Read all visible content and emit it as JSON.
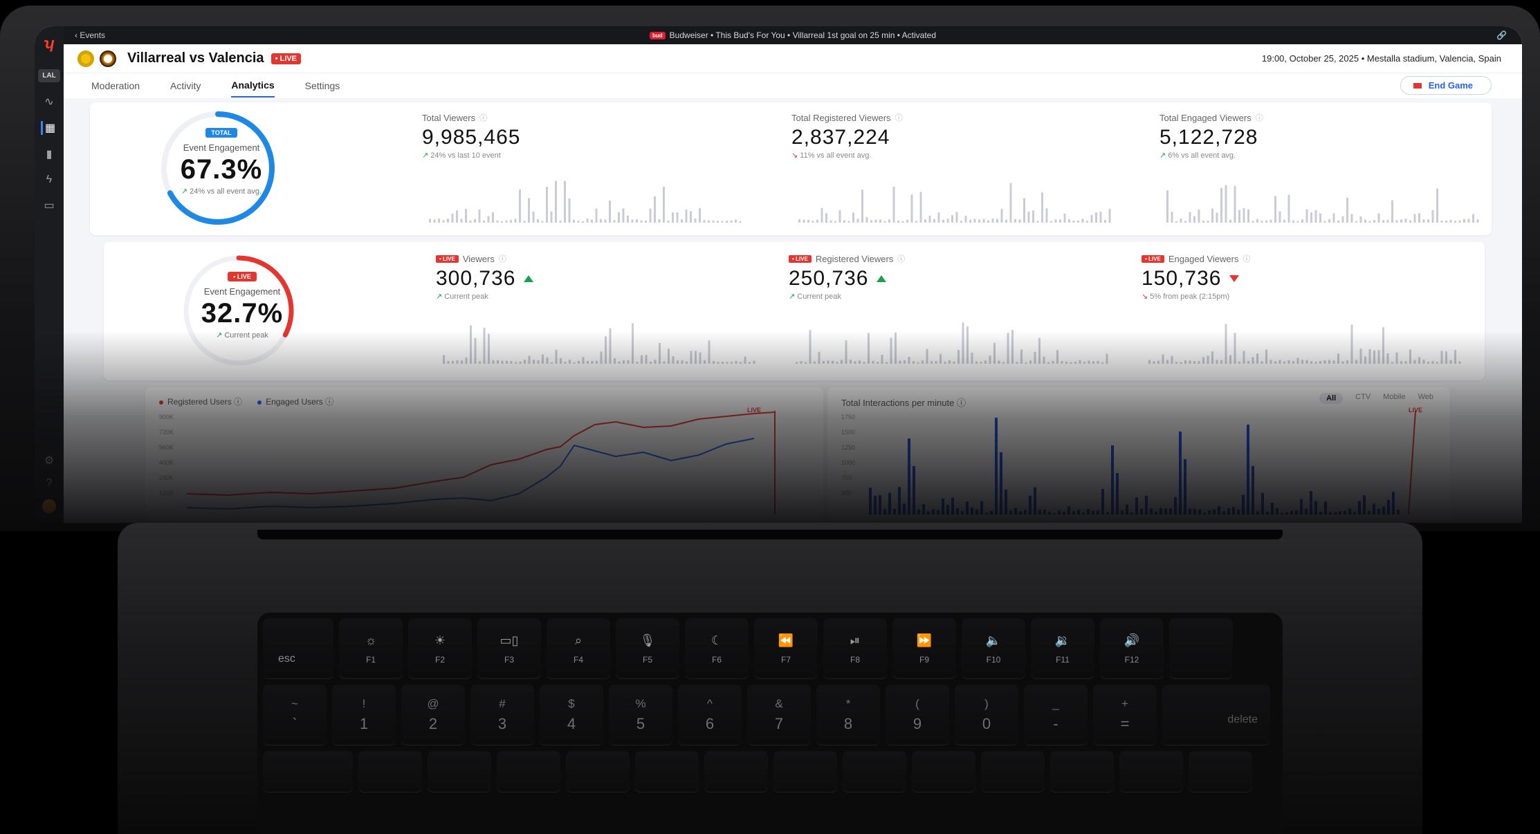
{
  "topbar": {
    "back_label": "Events",
    "sponsor_logo": "bud",
    "sponsor_text": "Budweiser  •  This Bud's For You  •  Villarreal 1st goal on 25 min  •  Activated"
  },
  "rail": {
    "org_label": "LAL"
  },
  "header": {
    "title": "Villarreal vs Valencia",
    "live_badge": "• LIVE",
    "meta": "19:00, October 25, 2025  •  Mestalla stadium, Valencia, Spain"
  },
  "tabs": [
    "Moderation",
    "Activity",
    "Analytics",
    "Settings"
  ],
  "active_tab": "Analytics",
  "end_game_label": "End Game",
  "total_ring": {
    "pill": "TOTAL",
    "label": "Event Engagement",
    "value": "67.3%",
    "fraction": 0.673,
    "sub": "24% vs all event avg.",
    "color": "#1e88e5"
  },
  "live_ring": {
    "pill": "• LIVE",
    "label": "Event Engagement",
    "value": "32.7%",
    "fraction": 0.327,
    "sub": "Current peak",
    "color": "#e5352f"
  },
  "total_metrics": [
    {
      "label": "Total Viewers",
      "value": "9,985,465",
      "sub": "24% vs last 10 event",
      "trend": "up"
    },
    {
      "label": "Total Registered Viewers",
      "value": "2,837,224",
      "sub": "11% vs all event avg.",
      "trend": "down"
    },
    {
      "label": "Total Engaged Viewers",
      "value": "5,122,728",
      "sub": "6% vs all event avg.",
      "trend": "up"
    }
  ],
  "live_metrics": [
    {
      "badge": "• LIVE",
      "label": "Viewers",
      "value": "300,736",
      "sub": "Current peak",
      "trend": "up"
    },
    {
      "badge": "• LIVE",
      "label": "Registered Viewers",
      "value": "250,736",
      "sub": "Current peak",
      "trend": "up"
    },
    {
      "badge": "• LIVE",
      "label": "Engaged Viewers",
      "value": "150,736",
      "sub": "5% from peak (2:15pm)",
      "trend": "down"
    }
  ],
  "users_chart": {
    "legend": [
      "Registered Users",
      "Engaged Users"
    ],
    "legend_colors": [
      "#e5352f",
      "#2563eb"
    ],
    "y_ticks": [
      "900K",
      "720K",
      "560K",
      "400K",
      "240K",
      "120K"
    ],
    "live_label": "LIVE"
  },
  "interactions_chart": {
    "title": "Total Interactions per minute",
    "filters": [
      "All",
      "CTV",
      "Mobile",
      "Web"
    ],
    "active_filter": "All",
    "y_ticks": [
      "1750",
      "1500",
      "1250",
      "1000",
      "750",
      "500"
    ],
    "live_label": "LIVE"
  },
  "keyboard": {
    "esc": "esc",
    "fkeys": [
      {
        "icon": "brightness-down-icon",
        "glyph": "☼",
        "label": "F1"
      },
      {
        "icon": "brightness-up-icon",
        "glyph": "☀",
        "label": "F2"
      },
      {
        "icon": "mission-control-icon",
        "glyph": "▭▯",
        "label": "F3"
      },
      {
        "icon": "search-icon",
        "glyph": "⌕",
        "label": "F4"
      },
      {
        "icon": "microphone-icon",
        "glyph": "🎙",
        "label": "F5"
      },
      {
        "icon": "moon-icon",
        "glyph": "☾",
        "label": "F6"
      },
      {
        "icon": "rewind-icon",
        "glyph": "⏪",
        "label": "F7"
      },
      {
        "icon": "play-pause-icon",
        "glyph": "⏯",
        "label": "F8"
      },
      {
        "icon": "fast-forward-icon",
        "glyph": "⏩",
        "label": "F9"
      },
      {
        "icon": "mute-icon",
        "glyph": "🔈",
        "label": "F10"
      },
      {
        "icon": "volume-down-icon",
        "glyph": "🔉",
        "label": "F11"
      },
      {
        "icon": "volume-up-icon",
        "glyph": "🔊",
        "label": "F12"
      }
    ],
    "numbers": [
      {
        "top": "~",
        "bot": "`"
      },
      {
        "top": "!",
        "bot": "1"
      },
      {
        "top": "@",
        "bot": "2"
      },
      {
        "top": "#",
        "bot": "3"
      },
      {
        "top": "$",
        "bot": "4"
      },
      {
        "top": "%",
        "bot": "5"
      },
      {
        "top": "^",
        "bot": "6"
      },
      {
        "top": "&",
        "bot": "7"
      },
      {
        "top": "*",
        "bot": "8"
      },
      {
        "top": "(",
        "bot": "9"
      },
      {
        "top": ")",
        "bot": "0"
      },
      {
        "top": "_",
        "bot": "-"
      },
      {
        "top": "+",
        "bot": "="
      }
    ],
    "delete": "delete"
  }
}
